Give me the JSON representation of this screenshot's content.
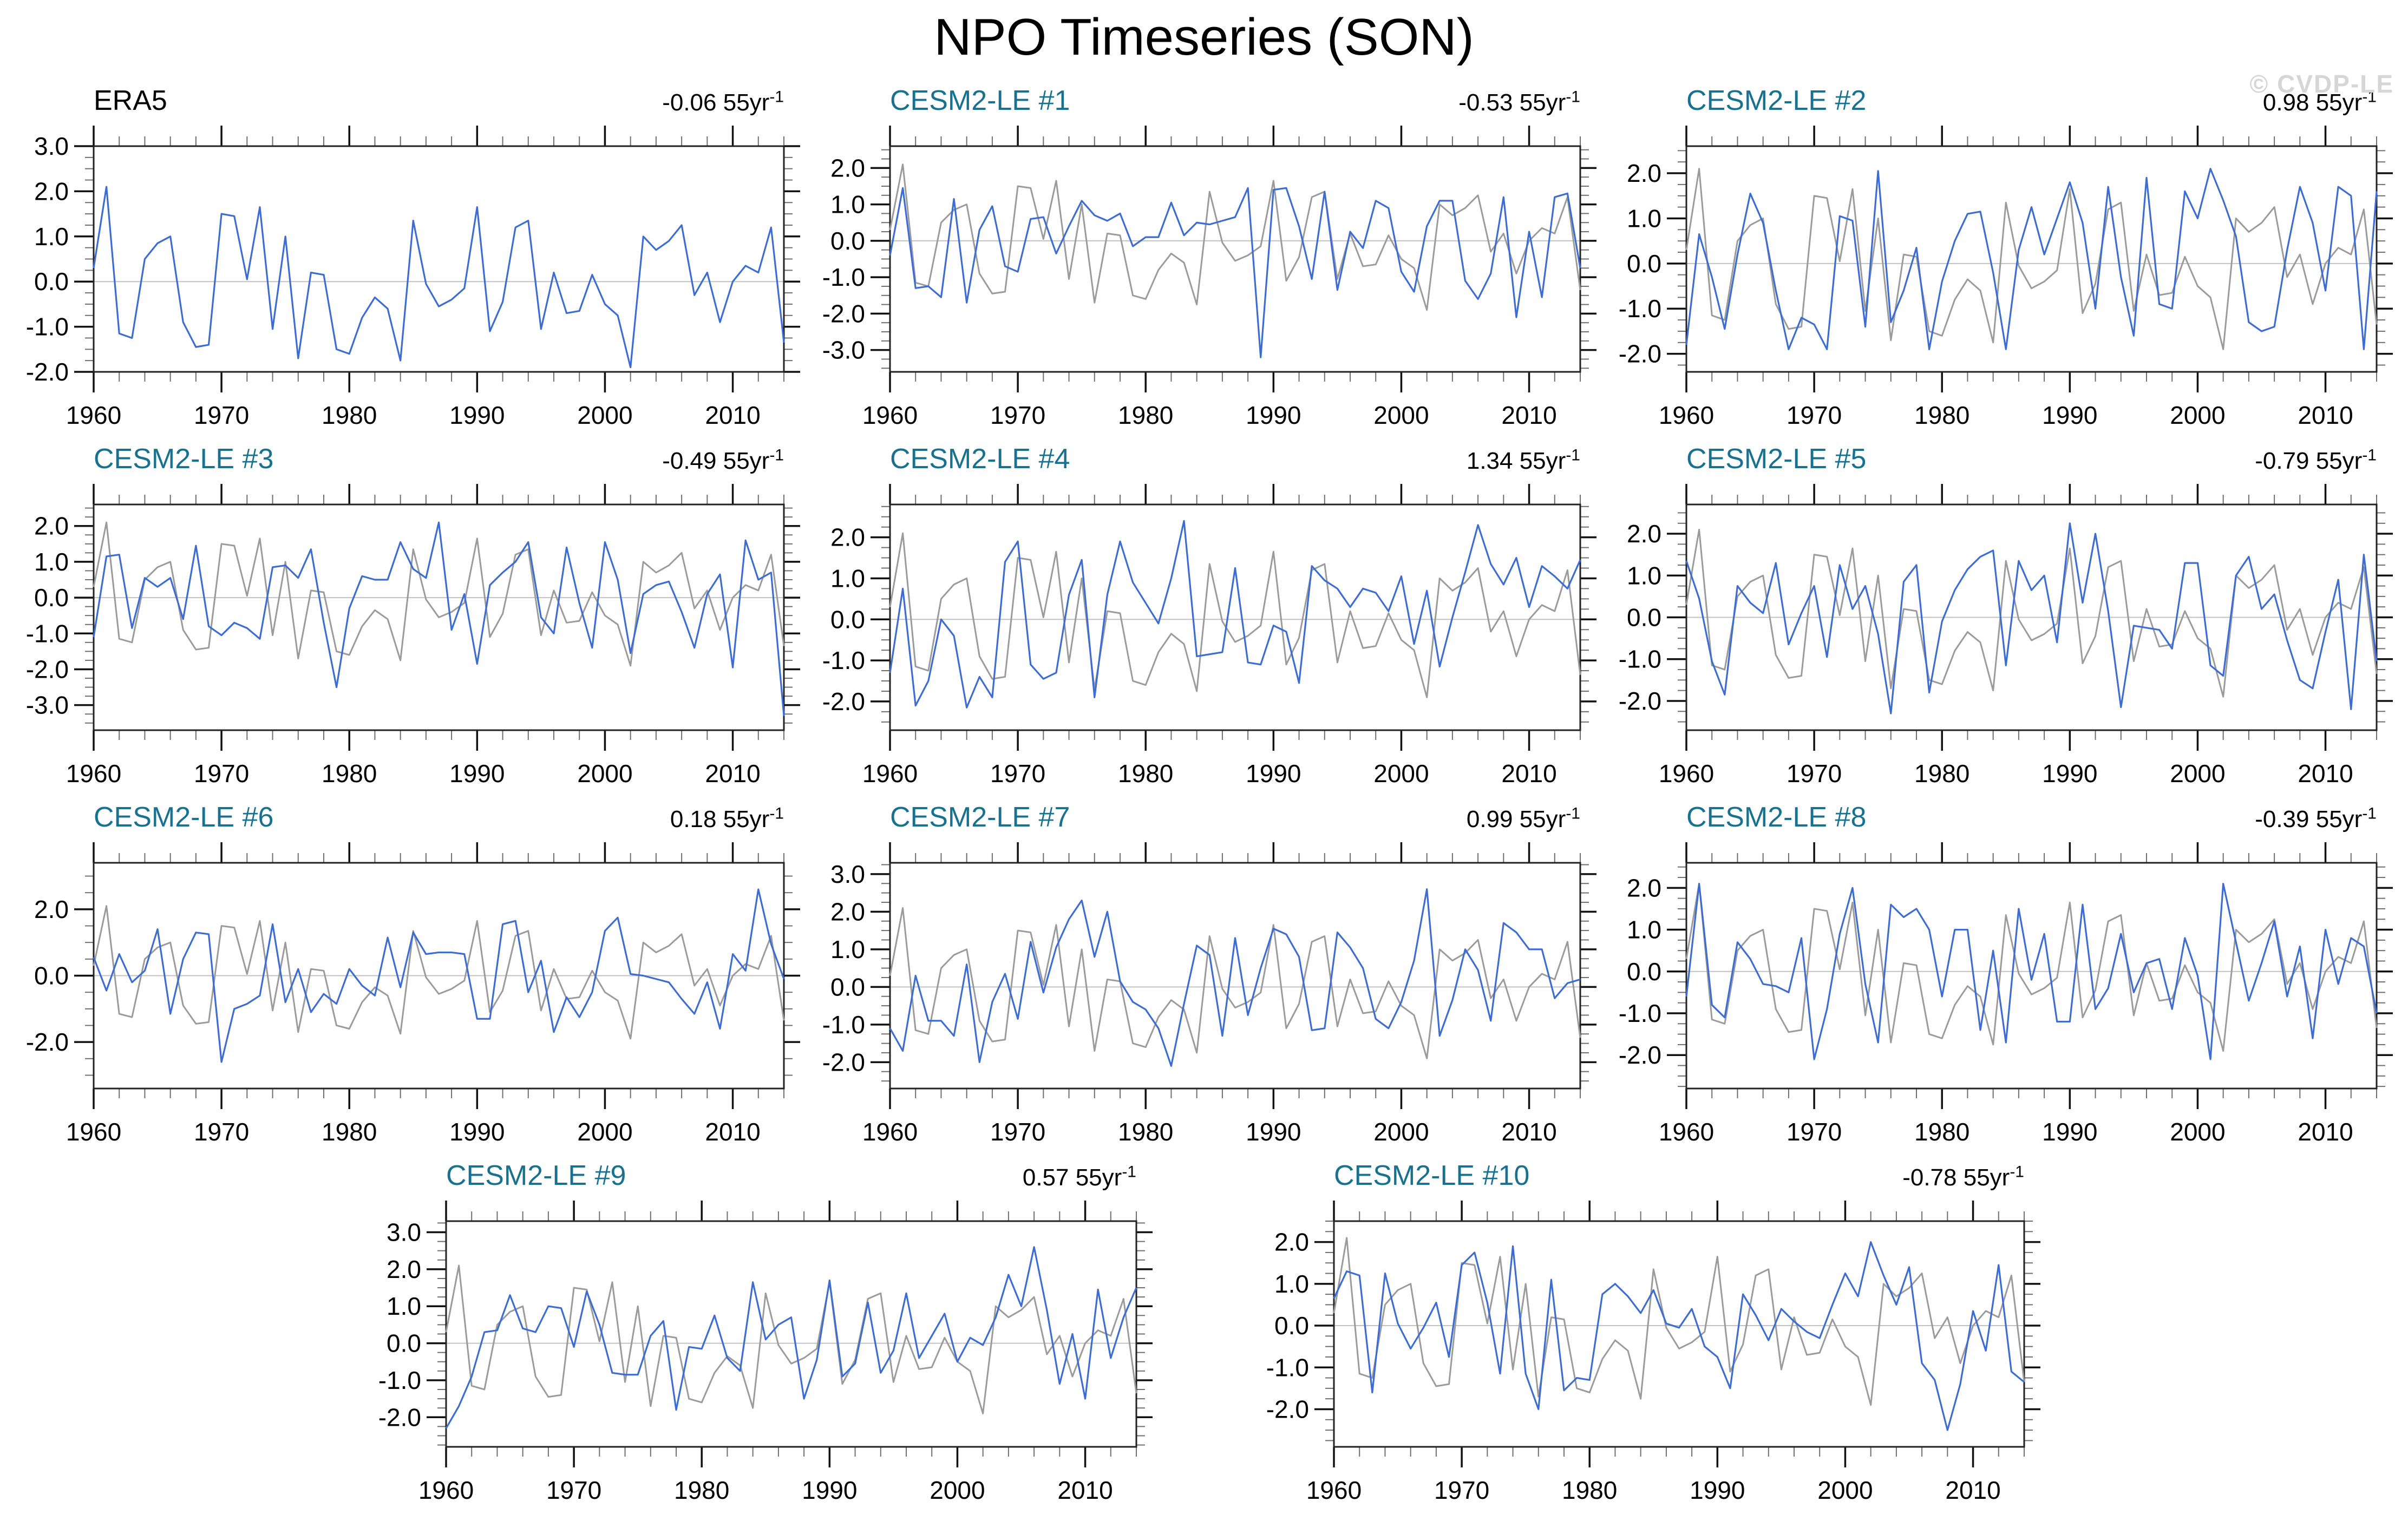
{
  "page": {
    "title": "NPO Timeseries (SON)",
    "watermark": "© CVDP-LE"
  },
  "colors": {
    "model_line": "#3d6cd3",
    "reference_line": "#9b9b9b",
    "zero_line": "#c2c2c2",
    "axis": "#222222",
    "major_tick": "#111111",
    "minor_tick": "#6e6e6e",
    "panel_title_teal": "#17718f",
    "obs_title_black": "#000000",
    "watermark_gray": "#d6d6d6"
  },
  "chart_data": {
    "type": "line",
    "x_start": 1960,
    "x_end": 2014,
    "x_ticks": [
      1960,
      1970,
      1980,
      1990,
      2000,
      2010
    ],
    "x_minor_step_years": 2,
    "trend_unit": "55yr",
    "trend_exponent": "-1",
    "reference_name": "ERA5",
    "layout_rows": [
      [
        0,
        1,
        2
      ],
      [
        3,
        4,
        5
      ],
      [
        6,
        7,
        8
      ],
      [
        9,
        10
      ]
    ],
    "reference_values": [
      0.3,
      2.1,
      -1.15,
      -1.25,
      0.5,
      0.85,
      1.0,
      -0.9,
      -1.45,
      -1.4,
      1.5,
      1.45,
      0.05,
      1.65,
      -1.05,
      1.0,
      -1.7,
      0.2,
      0.15,
      -1.5,
      -1.6,
      -0.8,
      -0.35,
      -0.6,
      -1.75,
      1.35,
      -0.05,
      -0.55,
      -0.4,
      -0.15,
      1.65,
      -1.1,
      -0.45,
      1.2,
      1.35,
      -1.05,
      0.2,
      -0.7,
      -0.65,
      0.15,
      -0.5,
      -0.75,
      -1.9,
      1.0,
      0.7,
      0.9,
      1.25,
      -0.3,
      0.2,
      -0.9,
      0.0,
      0.35,
      0.2,
      1.2,
      -1.35
    ],
    "panels": [
      {
        "label": "ERA5",
        "obs": true,
        "trend": "-0.06",
        "ylim": [
          -2.0,
          3.0
        ],
        "yticks": [
          3.0,
          2.0,
          1.0,
          0.0,
          -1.0,
          -2.0
        ],
        "yminor": 0.25,
        "overlay": false,
        "values": [
          0.3,
          2.1,
          -1.15,
          -1.25,
          0.5,
          0.85,
          1.0,
          -0.9,
          -1.45,
          -1.4,
          1.5,
          1.45,
          0.05,
          1.65,
          -1.05,
          1.0,
          -1.7,
          0.2,
          0.15,
          -1.5,
          -1.6,
          -0.8,
          -0.35,
          -0.6,
          -1.75,
          1.35,
          -0.05,
          -0.55,
          -0.4,
          -0.15,
          1.65,
          -1.1,
          -0.45,
          1.2,
          1.35,
          -1.05,
          0.2,
          -0.7,
          -0.65,
          0.15,
          -0.5,
          -0.75,
          -1.9,
          1.0,
          0.7,
          0.9,
          1.25,
          -0.3,
          0.2,
          -0.9,
          0.0,
          0.35,
          0.2,
          1.2,
          -1.35
        ]
      },
      {
        "label": "CESM2-LE #1",
        "obs": false,
        "trend": "-0.53",
        "ylim": [
          -3.6,
          2.6
        ],
        "yticks": [
          2.0,
          1.0,
          0.0,
          -1.0,
          -2.0,
          -3.0
        ],
        "yminor": 0.25,
        "overlay": true,
        "values": [
          -0.4,
          1.45,
          -1.3,
          -1.25,
          -1.55,
          1.15,
          -1.7,
          0.3,
          0.95,
          -0.7,
          -0.85,
          0.6,
          0.65,
          -0.35,
          0.4,
          1.1,
          0.7,
          0.55,
          0.75,
          -0.15,
          0.1,
          0.1,
          1.05,
          0.15,
          0.5,
          0.45,
          0.55,
          0.65,
          1.45,
          -3.2,
          1.4,
          1.45,
          0.4,
          -1.05,
          1.35,
          -1.35,
          0.25,
          -0.2,
          1.1,
          0.9,
          -0.85,
          -1.4,
          0.4,
          1.1,
          1.1,
          -1.1,
          -1.6,
          -0.9,
          1.2,
          -2.1,
          0.25,
          -1.55,
          1.2,
          1.3,
          -0.75
        ]
      },
      {
        "label": "CESM2-LE #2",
        "obs": false,
        "trend": "0.98",
        "ylim": [
          -2.4,
          2.6
        ],
        "yticks": [
          2.0,
          1.0,
          0.0,
          -1.0,
          -2.0
        ],
        "yminor": 0.25,
        "overlay": true,
        "values": [
          -1.8,
          0.65,
          -0.3,
          -1.45,
          0.2,
          1.55,
          0.9,
          -0.6,
          -1.9,
          -1.2,
          -1.35,
          -1.9,
          1.05,
          0.95,
          -1.4,
          2.05,
          -1.3,
          -0.6,
          0.35,
          -1.9,
          -0.4,
          0.5,
          1.1,
          1.15,
          -0.2,
          -1.9,
          0.3,
          1.25,
          0.2,
          1.0,
          1.8,
          0.9,
          -1.0,
          1.7,
          -0.3,
          -1.6,
          1.9,
          -0.9,
          -1.0,
          1.6,
          1.0,
          2.1,
          1.4,
          0.6,
          -1.3,
          -1.5,
          -1.4,
          0.3,
          1.7,
          0.9,
          -0.6,
          1.7,
          1.5,
          -1.9,
          1.6
        ]
      },
      {
        "label": "CESM2-LE #3",
        "obs": false,
        "trend": "-0.49",
        "ylim": [
          -3.7,
          2.6
        ],
        "yticks": [
          2.0,
          1.0,
          0.0,
          -1.0,
          -2.0,
          -3.0
        ],
        "yminor": 0.25,
        "overlay": true,
        "values": [
          -1.1,
          1.15,
          1.2,
          -0.85,
          0.55,
          0.3,
          0.55,
          -0.6,
          1.45,
          -0.8,
          -1.05,
          -0.7,
          -0.85,
          -1.15,
          0.85,
          0.9,
          0.55,
          1.35,
          -0.7,
          -2.5,
          -0.3,
          0.6,
          0.5,
          0.5,
          1.55,
          0.8,
          0.55,
          2.1,
          -0.9,
          0.1,
          -1.85,
          0.35,
          0.7,
          1.0,
          1.55,
          -0.55,
          -1.0,
          1.4,
          -0.15,
          -1.4,
          1.55,
          0.5,
          -1.55,
          0.1,
          0.35,
          0.45,
          -0.4,
          -1.4,
          0.1,
          0.65,
          -1.95,
          1.6,
          0.5,
          0.7,
          -3.3
        ]
      },
      {
        "label": "CESM2-LE #4",
        "obs": false,
        "trend": "1.34",
        "ylim": [
          -2.7,
          2.8
        ],
        "yticks": [
          2.0,
          1.0,
          0.0,
          -1.0,
          -2.0
        ],
        "yminor": 0.25,
        "overlay": true,
        "values": [
          -1.3,
          0.75,
          -2.1,
          -1.5,
          0.0,
          -0.4,
          -2.15,
          -1.4,
          -1.9,
          1.4,
          1.9,
          -1.1,
          -1.45,
          -1.3,
          0.6,
          1.45,
          -1.9,
          0.6,
          1.9,
          0.9,
          0.4,
          -0.1,
          1.0,
          2.4,
          -0.9,
          -0.85,
          -0.8,
          1.25,
          -1.05,
          -1.1,
          -0.15,
          -0.3,
          -1.55,
          1.3,
          0.95,
          0.75,
          0.3,
          0.75,
          0.65,
          0.2,
          1.05,
          -0.6,
          0.7,
          -1.15,
          0.05,
          1.15,
          2.3,
          1.35,
          0.85,
          1.5,
          0.3,
          1.3,
          1.05,
          0.75,
          1.45
        ]
      },
      {
        "label": "CESM2-LE #5",
        "obs": false,
        "trend": "-0.79",
        "ylim": [
          -2.7,
          2.7
        ],
        "yticks": [
          2.0,
          1.0,
          0.0,
          -1.0,
          -2.0
        ],
        "yminor": 0.25,
        "overlay": true,
        "values": [
          1.35,
          0.45,
          -1.05,
          -1.85,
          0.75,
          0.35,
          0.1,
          1.3,
          -0.65,
          0.1,
          0.75,
          -0.95,
          1.25,
          0.2,
          0.75,
          -0.4,
          -2.3,
          0.85,
          1.25,
          -1.8,
          -0.1,
          0.65,
          1.15,
          1.45,
          1.6,
          -1.15,
          1.35,
          0.65,
          1.0,
          -0.6,
          2.25,
          0.35,
          2.0,
          0.15,
          -2.15,
          -0.2,
          -0.25,
          -0.3,
          -0.75,
          1.3,
          1.3,
          -1.15,
          -1.4,
          1.0,
          1.45,
          0.2,
          0.55,
          -0.55,
          -1.5,
          -1.7,
          -0.35,
          0.9,
          -2.2,
          1.5,
          -1.05
        ]
      },
      {
        "label": "CESM2-LE #6",
        "obs": false,
        "trend": "0.18",
        "ylim": [
          -3.4,
          3.4
        ],
        "yticks": [
          2.0,
          0.0,
          -2.0
        ],
        "yminor": 0.5,
        "overlay": true,
        "values": [
          0.55,
          -0.45,
          0.65,
          -0.2,
          0.15,
          1.4,
          -1.15,
          0.5,
          1.3,
          1.25,
          -2.6,
          -1.0,
          -0.85,
          -0.6,
          1.55,
          -0.8,
          0.2,
          -1.1,
          -0.55,
          -0.85,
          0.2,
          -0.3,
          -0.6,
          1.15,
          -0.35,
          1.3,
          0.65,
          0.7,
          0.7,
          0.65,
          -1.3,
          -1.3,
          1.55,
          1.65,
          -0.5,
          0.45,
          -1.7,
          -0.65,
          -1.25,
          -0.5,
          1.35,
          1.75,
          0.05,
          0.0,
          -0.1,
          -0.2,
          -0.7,
          -1.15,
          -0.2,
          -1.6,
          0.65,
          0.15,
          2.6,
          0.95,
          -0.1
        ]
      },
      {
        "label": "CESM2-LE #7",
        "obs": false,
        "trend": "0.99",
        "ylim": [
          -2.7,
          3.3
        ],
        "yticks": [
          3.0,
          2.0,
          1.0,
          0.0,
          -1.0,
          -2.0
        ],
        "yminor": 0.25,
        "overlay": true,
        "values": [
          -1.1,
          -1.7,
          0.3,
          -0.9,
          -0.9,
          -1.3,
          0.6,
          -2.0,
          -0.4,
          0.35,
          -0.85,
          1.2,
          -0.15,
          1.05,
          1.8,
          2.3,
          0.8,
          2.0,
          0.15,
          -0.4,
          -0.6,
          -1.1,
          -2.1,
          -0.45,
          1.1,
          0.85,
          -1.3,
          1.3,
          -0.75,
          0.5,
          1.55,
          1.4,
          0.8,
          -1.15,
          -1.1,
          1.45,
          1.05,
          0.5,
          -0.85,
          -1.1,
          -0.4,
          0.7,
          2.6,
          -1.3,
          -0.35,
          1.0,
          0.45,
          -0.9,
          1.7,
          1.45,
          1.0,
          1.0,
          -0.3,
          0.1,
          0.2
        ]
      },
      {
        "label": "CESM2-LE #8",
        "obs": false,
        "trend": "-0.39",
        "ylim": [
          -2.8,
          2.6
        ],
        "yticks": [
          2.0,
          1.0,
          0.0,
          -1.0,
          -2.0
        ],
        "yminor": 0.25,
        "overlay": true,
        "values": [
          -0.6,
          2.1,
          -0.8,
          -1.1,
          0.7,
          0.3,
          -0.3,
          -0.35,
          -0.5,
          0.8,
          -2.1,
          -0.9,
          0.9,
          2.0,
          -0.3,
          -1.7,
          1.6,
          1.3,
          1.5,
          1.0,
          -0.6,
          1.0,
          1.0,
          -1.4,
          0.5,
          -1.7,
          1.5,
          -0.2,
          0.9,
          -1.2,
          -1.2,
          1.6,
          -0.9,
          -0.4,
          0.9,
          -0.5,
          0.2,
          0.3,
          -0.9,
          0.8,
          -0.1,
          -2.1,
          2.1,
          0.7,
          -0.7,
          0.2,
          1.2,
          -0.6,
          0.6,
          -1.6,
          1.0,
          -0.3,
          0.8,
          0.6,
          -1.0
        ]
      },
      {
        "label": "CESM2-LE #9",
        "obs": false,
        "trend": "0.57",
        "ylim": [
          -2.8,
          3.3
        ],
        "yticks": [
          3.0,
          2.0,
          1.0,
          0.0,
          -1.0,
          -2.0
        ],
        "yminor": 0.25,
        "overlay": true,
        "values": [
          -2.3,
          -1.7,
          -0.9,
          0.3,
          0.35,
          1.3,
          0.4,
          0.3,
          1.0,
          0.95,
          -0.1,
          1.4,
          0.5,
          -0.8,
          -0.85,
          -0.85,
          0.2,
          0.6,
          -1.8,
          -0.1,
          -0.15,
          0.75,
          -0.4,
          -0.75,
          1.65,
          0.1,
          0.5,
          0.7,
          -1.5,
          -0.45,
          1.7,
          -0.9,
          -0.55,
          1.1,
          -0.8,
          -0.2,
          1.35,
          -0.4,
          0.2,
          0.8,
          -0.5,
          0.15,
          -0.05,
          0.7,
          1.85,
          1.0,
          2.6,
          0.9,
          -1.1,
          0.25,
          -1.5,
          1.45,
          -0.4,
          0.7,
          1.5
        ]
      },
      {
        "label": "CESM2-LE #10",
        "obs": false,
        "trend": "-0.78",
        "ylim": [
          -2.9,
          2.5
        ],
        "yticks": [
          2.0,
          1.0,
          0.0,
          -1.0,
          -2.0
        ],
        "yminor": 0.25,
        "overlay": true,
        "values": [
          0.65,
          1.3,
          1.2,
          -1.6,
          1.25,
          0.05,
          -0.55,
          -0.05,
          0.55,
          -0.75,
          1.45,
          1.75,
          0.55,
          -1.15,
          1.9,
          -1.15,
          -2.0,
          1.1,
          -1.55,
          -1.25,
          -1.3,
          0.75,
          1.0,
          0.7,
          0.3,
          0.85,
          0.05,
          -0.05,
          0.4,
          -0.5,
          -0.75,
          -1.5,
          0.75,
          0.25,
          -0.35,
          0.4,
          0.1,
          -0.15,
          -0.3,
          0.5,
          1.25,
          0.7,
          2.0,
          1.2,
          0.5,
          1.4,
          -0.9,
          -1.3,
          -2.5,
          -1.4,
          0.35,
          -0.6,
          1.45,
          -1.1,
          -1.35
        ]
      }
    ]
  }
}
